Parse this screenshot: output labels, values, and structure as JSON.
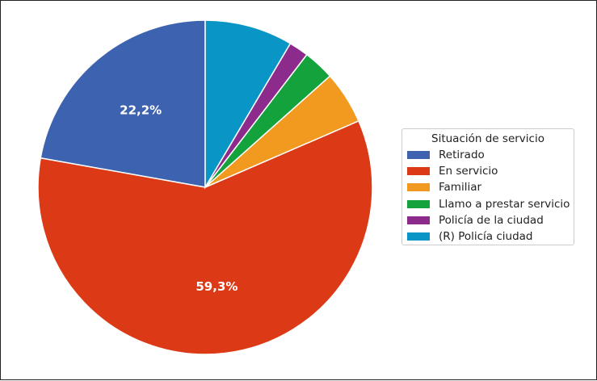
{
  "chart_data": {
    "type": "pie",
    "legend_title": "Situación de servicio",
    "legend_position": "right",
    "start": "top, counterclockwise",
    "slices": [
      {
        "label": "Retirado",
        "value": 22.2,
        "color": "#3d62b0",
        "data_label": "22,2%"
      },
      {
        "label": "En servicio",
        "value": 59.3,
        "color": "#dc3a16",
        "data_label": "59,3%"
      },
      {
        "label": "Familiar",
        "value": 5.1,
        "color": "#f29a1f",
        "data_label": ""
      },
      {
        "label": "Llamo a prestar servicio",
        "value": 3.0,
        "color": "#14a23c",
        "data_label": ""
      },
      {
        "label": "Policía de la ciudad",
        "value": 1.9,
        "color": "#8c2b8c",
        "data_label": ""
      },
      {
        "label": "(R) Policía ciudad",
        "value": 8.5,
        "color": "#0996c7",
        "data_label": ""
      }
    ]
  }
}
